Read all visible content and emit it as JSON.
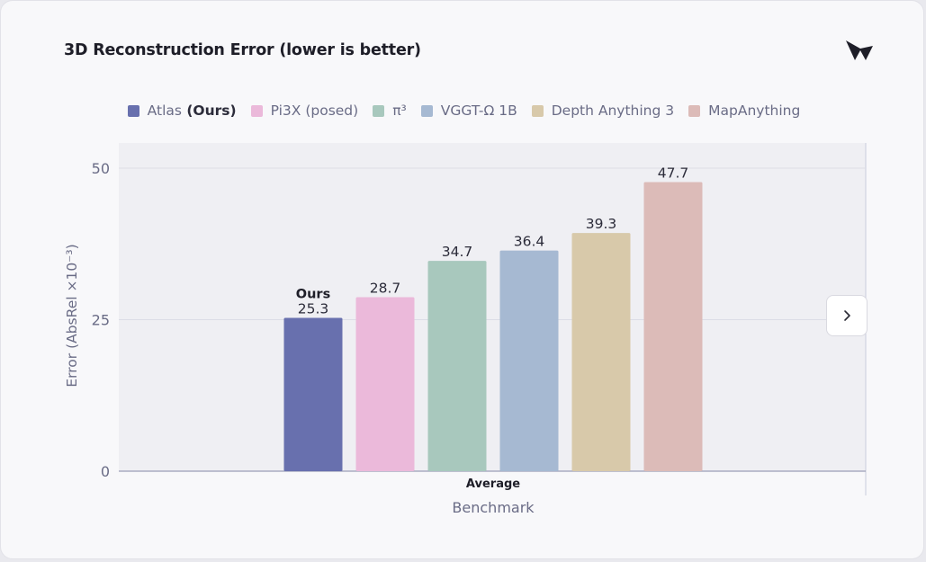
{
  "page": {
    "title": "3D Reconstruction Error (lower is better)",
    "logo_icon": "brand-logo-icon",
    "next_icon": "chevron-right-icon"
  },
  "chart_data": {
    "type": "bar",
    "xlabel": "Benchmark",
    "ylabel": "Error (AbsRel ×10⁻³)",
    "categories": [
      "Average"
    ],
    "ylim": [
      0,
      50
    ],
    "yticks": [
      0,
      25,
      50
    ],
    "grid": true,
    "legend_position": "top-center",
    "series": [
      {
        "name": "Atlas",
        "name_suffix": "(Ours)",
        "values": [
          25.3
        ],
        "color": "#6870ae",
        "annotation": "Ours",
        "label": "25.3"
      },
      {
        "name": "Pi3X (posed)",
        "values": [
          28.7
        ],
        "color": "#ebb9da",
        "label": "28.7"
      },
      {
        "name": "π³",
        "values": [
          34.7
        ],
        "color": "#a8c8bd",
        "label": "34.7"
      },
      {
        "name": "VGGT-Ω 1B",
        "values": [
          36.4
        ],
        "color": "#a6b9d2",
        "label": "36.4"
      },
      {
        "name": "Depth Anything 3",
        "values": [
          39.3
        ],
        "color": "#d8c9aa",
        "label": "39.3"
      },
      {
        "name": "MapAnything",
        "values": [
          47.7
        ],
        "color": "#dcbbb8",
        "label": "47.7"
      }
    ]
  }
}
